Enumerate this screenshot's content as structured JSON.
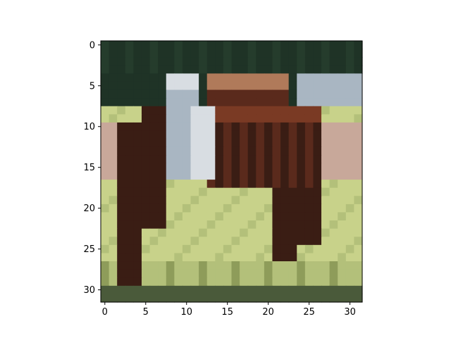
{
  "figure": {
    "background": "#ffffff",
    "axes_color": "#000000"
  },
  "image": {
    "description_kind": "pixelated 32x32 photo of a brown horse with a white blaze grazing on a grassy field",
    "grid_width": 32,
    "grid_height": 32,
    "colors": {
      "dark_tree": "#1f3326",
      "dark_tree_2": "#253c2c",
      "sky_dark": "#1a2622",
      "horse_dark": "#3a1d14",
      "horse_mid": "#5a2a1c",
      "horse_light": "#7a3a24",
      "horse_highlight": "#b07a5a",
      "white_blaze": "#d8dde2",
      "grey_neck": "#a9b6c2",
      "grass_light": "#c8d28a",
      "grass_mid": "#b3c07a",
      "grass_dark": "#8e9c5a",
      "bottom_dark": "#4a5a3a",
      "pinkish": "#c8a89a"
    }
  },
  "axes": {
    "x_ticks": [
      "0",
      "5",
      "10",
      "15",
      "20",
      "25",
      "30"
    ],
    "y_ticks": [
      "0",
      "5",
      "10",
      "15",
      "20",
      "25",
      "30"
    ]
  }
}
